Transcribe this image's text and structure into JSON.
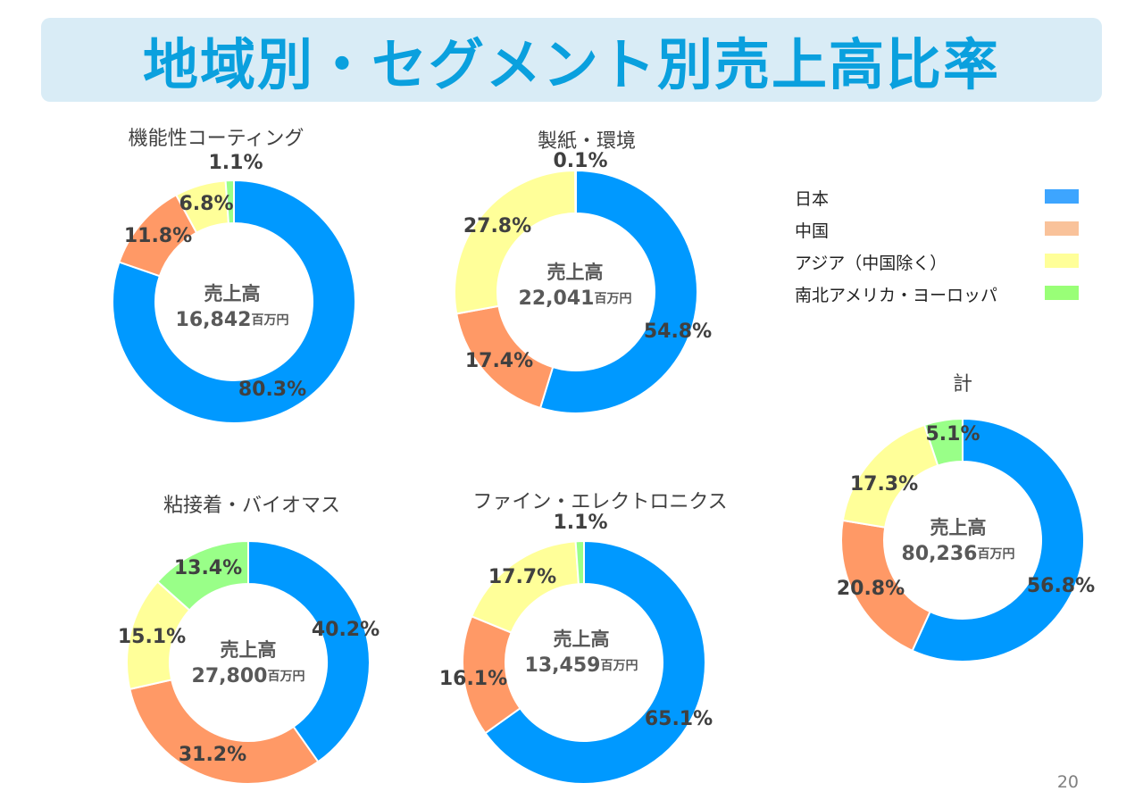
{
  "title": "地域別・セグメント別売上高比率",
  "page_number": "20",
  "colors": {
    "japan": "#0099ff",
    "china": "#ff9966",
    "asia": "#ffff99",
    "americas_europe": "#99ff88"
  },
  "legend": [
    {
      "label": "日本",
      "color": "#3da5ff"
    },
    {
      "label": "中国",
      "color": "#f9c29a"
    },
    {
      "label": "アジア（中国除く）",
      "color": "#ffff99"
    },
    {
      "label": "南北アメリカ・ヨーロッパ",
      "color": "#99ff77"
    }
  ],
  "center_label": "売上高",
  "unit": "百万円",
  "charts": [
    {
      "title": "機能性コーティング",
      "total": "16,842",
      "labels": [
        "80.3%",
        "11.8%",
        "6.8%",
        "1.1%"
      ]
    },
    {
      "title": "製紙・環境",
      "total": "22,041",
      "labels": [
        "54.8%",
        "17.4%",
        "27.8%",
        "0.1%"
      ]
    },
    {
      "title": "粘接着・バイオマス",
      "total": "27,800",
      "labels": [
        "40.2%",
        "31.2%",
        "15.1%",
        "13.4%"
      ]
    },
    {
      "title": "ファイン・エレクトロニクス",
      "total": "13,459",
      "labels": [
        "65.1%",
        "16.1%",
        "17.7%",
        "1.1%"
      ]
    },
    {
      "title": "計",
      "total": "80,236",
      "labels": [
        "56.8%",
        "20.8%",
        "17.3%",
        "5.1%"
      ]
    }
  ],
  "chart_data": [
    {
      "type": "pie",
      "title": "機能性コーティング",
      "categories": [
        "日本",
        "中国",
        "アジア（中国除く）",
        "南北アメリカ・ヨーロッパ"
      ],
      "values": [
        80.3,
        11.8,
        6.8,
        1.1
      ]
    },
    {
      "type": "pie",
      "title": "製紙・環境",
      "categories": [
        "日本",
        "中国",
        "アジア（中国除く）",
        "南北アメリカ・ヨーロッパ"
      ],
      "values": [
        54.8,
        17.4,
        27.8,
        0.1
      ]
    },
    {
      "type": "pie",
      "title": "粘接着・バイオマス",
      "categories": [
        "日本",
        "中国",
        "アジア（中国除く）",
        "南北アメリカ・ヨーロッパ"
      ],
      "values": [
        40.2,
        31.2,
        15.1,
        13.4
      ]
    },
    {
      "type": "pie",
      "title": "ファイン・エレクトロニクス",
      "categories": [
        "日本",
        "中国",
        "アジア（中国除く）",
        "南北アメリカ・ヨーロッパ"
      ],
      "values": [
        65.1,
        16.1,
        17.7,
        1.1
      ]
    },
    {
      "type": "pie",
      "title": "計",
      "categories": [
        "日本",
        "中国",
        "アジア（中国除く）",
        "南北アメリカ・ヨーロッパ"
      ],
      "values": [
        56.8,
        20.8,
        17.3,
        5.1
      ]
    }
  ]
}
